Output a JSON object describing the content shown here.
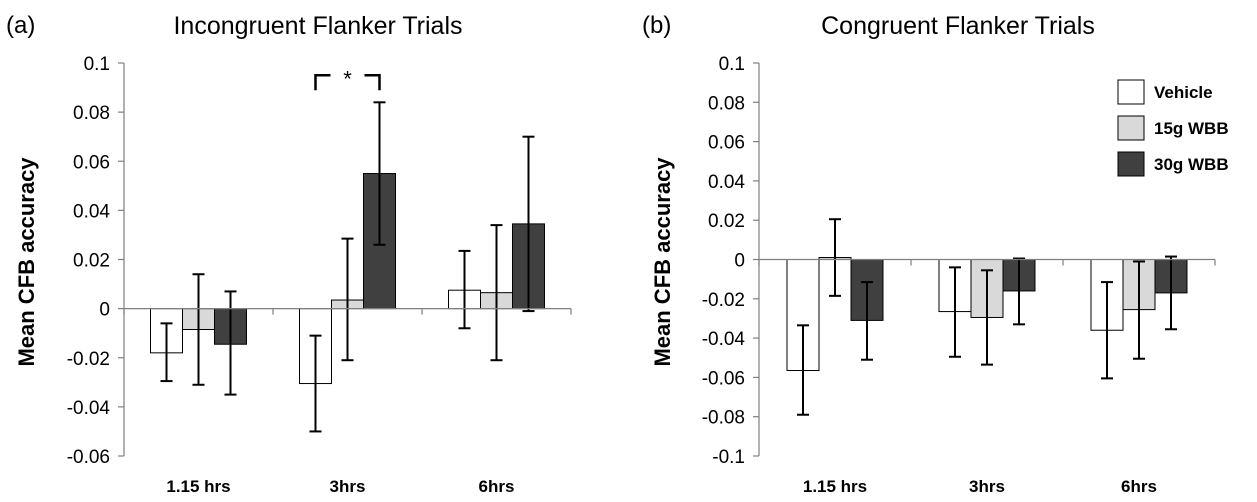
{
  "colors": {
    "Vehicle": "#ffffff",
    "15g WBB": "#d9d9d9",
    "30g WBB": "#404040",
    "outline": "#000000",
    "axis": "#7f7f7f"
  },
  "chart_data": [
    {
      "type": "bar",
      "panel": "(a)",
      "title": "Incongruent Flanker Trials",
      "xlabel": "",
      "ylabel": "Mean CFB accuracy",
      "ylim": [
        -0.06,
        0.1
      ],
      "yticks": [
        -0.06,
        -0.04,
        -0.02,
        0,
        0.02,
        0.04,
        0.06,
        0.08,
        0.1
      ],
      "ytick_labels": [
        "-0.06",
        "-0.04",
        "-0.02",
        "0",
        "0.02",
        "0.04",
        "0.06",
        "0.08",
        "0.1"
      ],
      "categories": [
        "1.15 hrs",
        "3hrs",
        "6hrs"
      ],
      "grid": false,
      "legend": "none",
      "series": [
        {
          "name": "Vehicle",
          "values": [
            -0.018,
            -0.0305,
            0.0075
          ],
          "err_low": [
            -0.0295,
            -0.05,
            -0.008
          ],
          "err_high": [
            -0.006,
            -0.011,
            0.0235
          ]
        },
        {
          "name": "15g WBB",
          "values": [
            -0.0085,
            0.0035,
            0.0065
          ],
          "err_low": [
            -0.031,
            -0.021,
            -0.021
          ],
          "err_high": [
            0.014,
            0.0285,
            0.034
          ]
        },
        {
          "name": "30g WBB",
          "values": [
            -0.0145,
            0.055,
            0.0345
          ],
          "err_low": [
            -0.035,
            0.026,
            -0.001
          ],
          "err_high": [
            0.007,
            0.084,
            0.07
          ]
        }
      ],
      "annotations": [
        {
          "text": "*",
          "category": "3hrs",
          "from_series": "Vehicle",
          "to_series": "30g WBB",
          "y": 0.095
        }
      ]
    },
    {
      "type": "bar",
      "panel": "(b)",
      "title": "Congruent Flanker Trials",
      "xlabel": "",
      "ylabel": "Mean CFB accuracy",
      "ylim": [
        -0.1,
        0.1
      ],
      "yticks": [
        -0.1,
        -0.08,
        -0.06,
        -0.04,
        -0.02,
        0,
        0.02,
        0.04,
        0.06,
        0.08,
        0.1
      ],
      "ytick_labels": [
        "-0.1",
        "-0.08",
        "-0.06",
        "-0.04",
        "-0.02",
        "0",
        "0.02",
        "0.04",
        "0.06",
        "0.08",
        "0.1"
      ],
      "categories": [
        "1.15 hrs",
        "3hrs",
        "6hrs"
      ],
      "grid": false,
      "legend": "top-right",
      "series": [
        {
          "name": "Vehicle",
          "values": [
            -0.0565,
            -0.0265,
            -0.036
          ],
          "err_low": [
            -0.079,
            -0.0495,
            -0.0605
          ],
          "err_high": [
            -0.0335,
            -0.004,
            -0.0115
          ]
        },
        {
          "name": "15g WBB",
          "values": [
            0.001,
            -0.0295,
            -0.0255
          ],
          "err_low": [
            -0.0185,
            -0.0535,
            -0.0505
          ],
          "err_high": [
            0.0205,
            -0.0055,
            -0.001
          ]
        },
        {
          "name": "30g WBB",
          "values": [
            -0.031,
            -0.016,
            -0.017
          ],
          "err_low": [
            -0.051,
            -0.033,
            -0.0355
          ],
          "err_high": [
            -0.0115,
            0.0005,
            0.0015
          ]
        }
      ],
      "annotations": []
    }
  ]
}
